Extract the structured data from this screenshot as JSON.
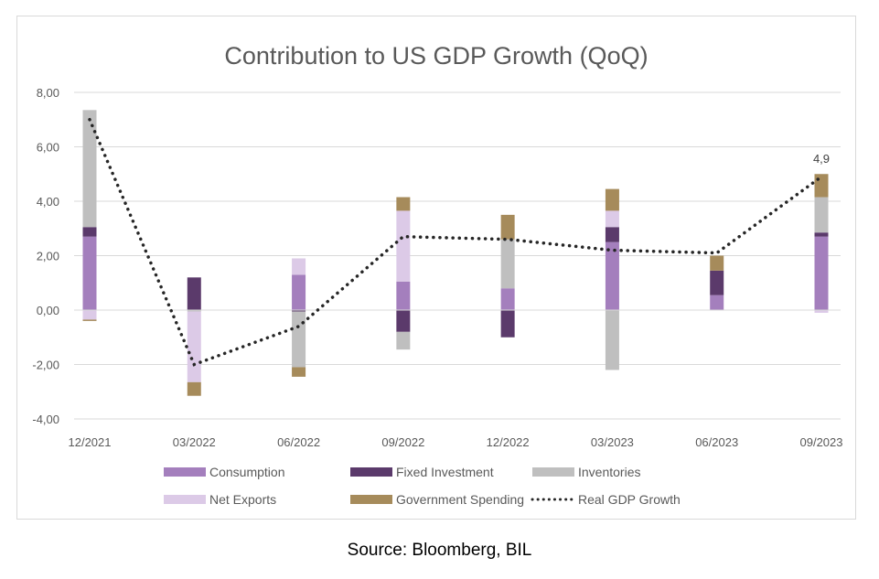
{
  "chart_data": {
    "type": "bar",
    "stacked": true,
    "title": "Contribution to US GDP Growth (QoQ)",
    "categories": [
      "12/2021",
      "03/2022",
      "06/2022",
      "09/2022",
      "12/2022",
      "03/2023",
      "06/2023",
      "09/2023"
    ],
    "ylim": [
      -4,
      8
    ],
    "yticks": [
      "8,00",
      "6,00",
      "4,00",
      "2,00",
      "0,00",
      "-2,00",
      "-4,00"
    ],
    "ytick_values": [
      8,
      6,
      4,
      2,
      0,
      -2,
      -4
    ],
    "grid": true,
    "legend_position": "bottom",
    "series": [
      {
        "name": "Consumption",
        "color": "#a47fbd",
        "values": [
          2.7,
          0.0,
          1.3,
          1.05,
          0.8,
          2.5,
          0.55,
          2.7
        ]
      },
      {
        "name": "Fixed Investment",
        "color": "#5b3a6b",
        "values": [
          0.35,
          1.2,
          -0.05,
          -0.8,
          -1.0,
          0.55,
          0.9,
          0.15
        ]
      },
      {
        "name": "Inventories",
        "color": "#bfbfbf",
        "values": [
          4.3,
          -0.05,
          -2.05,
          -0.65,
          1.8,
          -2.2,
          0.0,
          1.3
        ]
      },
      {
        "name": "Net Exports",
        "color": "#dccae7",
        "values": [
          -0.35,
          -2.6,
          0.6,
          2.6,
          0.0,
          0.6,
          0.0,
          -0.1
        ]
      },
      {
        "name": "Government Spending",
        "color": "#a68b5b",
        "values": [
          -0.05,
          -0.5,
          -0.35,
          0.5,
          0.9,
          0.8,
          0.55,
          0.85
        ]
      }
    ],
    "line_series": {
      "name": "Real GDP Growth",
      "color": "#262626",
      "style": "dotted",
      "values": [
        7.0,
        -2.0,
        -0.6,
        2.7,
        2.6,
        2.2,
        2.1,
        4.9
      ]
    },
    "annotations": [
      {
        "category": "09/2023",
        "text": "4,9"
      }
    ]
  },
  "source": "Source: Bloomberg, BIL"
}
